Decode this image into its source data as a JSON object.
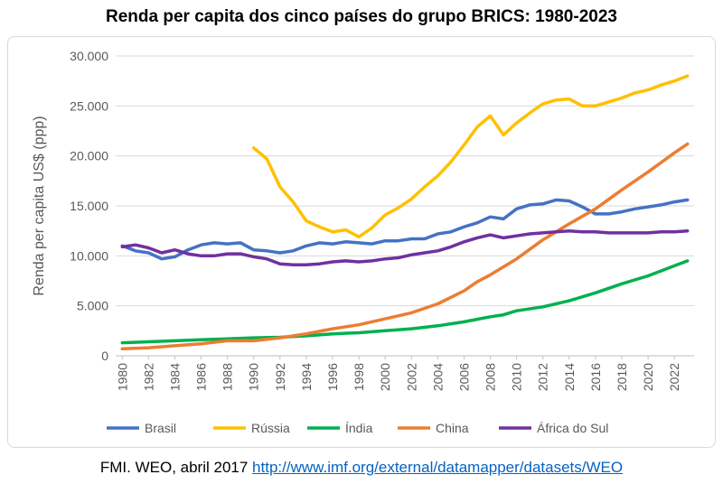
{
  "chart_data": {
    "type": "line",
    "title": "Renda per capita dos cinco países do grupo BRICS: 1980-2023",
    "ylabel": "Renda per capita US$ (ppp)",
    "xlabel": "",
    "xlim": [
      1980,
      2023
    ],
    "ylim": [
      0,
      30000
    ],
    "y_ticks": [
      0,
      5000,
      10000,
      15000,
      20000,
      25000,
      30000
    ],
    "y_tick_labels": [
      "0",
      "5.000",
      "10.000",
      "15.000",
      "20.000",
      "25.000",
      "30.000"
    ],
    "x_tick_labels": [
      "1980",
      "1982",
      "1984",
      "1986",
      "1988",
      "1990",
      "1992",
      "1994",
      "1996",
      "1998",
      "2000",
      "2002",
      "2004",
      "2006",
      "2008",
      "2010",
      "2012",
      "2014",
      "2016",
      "2018",
      "2020",
      "2022"
    ],
    "grid": "horizontal",
    "legend_position": "bottom",
    "series": [
      {
        "name": "Brasil",
        "color": "#4472c4",
        "x": [
          1980,
          1981,
          1982,
          1983,
          1984,
          1985,
          1986,
          1987,
          1988,
          1989,
          1990,
          1991,
          1992,
          1993,
          1994,
          1995,
          1996,
          1997,
          1998,
          1999,
          2000,
          2001,
          2002,
          2003,
          2004,
          2005,
          2006,
          2007,
          2008,
          2009,
          2010,
          2011,
          2012,
          2013,
          2014,
          2015,
          2016,
          2017,
          2018,
          2019,
          2020,
          2021,
          2022,
          2023
        ],
        "values": [
          11000,
          10500,
          10300,
          9700,
          9900,
          10600,
          11100,
          11300,
          11200,
          11300,
          10600,
          10500,
          10300,
          10500,
          11000,
          11300,
          11200,
          11400,
          11300,
          11200,
          11500,
          11500,
          11700,
          11700,
          12200,
          12400,
          12900,
          13300,
          13900,
          13700,
          14700,
          15100,
          15200,
          15600,
          15500,
          14900,
          14200,
          14200,
          14400,
          14700,
          14900,
          15100,
          15400,
          15600
        ]
      },
      {
        "name": "Rússia",
        "color": "#ffc000",
        "x": [
          1990,
          1991,
          1992,
          1993,
          1994,
          1995,
          1996,
          1997,
          1998,
          1999,
          2000,
          2001,
          2002,
          2003,
          2004,
          2005,
          2006,
          2007,
          2008,
          2009,
          2010,
          2011,
          2012,
          2013,
          2014,
          2015,
          2016,
          2017,
          2018,
          2019,
          2020,
          2021,
          2022,
          2023
        ],
        "values": [
          20800,
          19700,
          16900,
          15400,
          13500,
          12900,
          12400,
          12600,
          11900,
          12800,
          14100,
          14800,
          15700,
          16900,
          18000,
          19400,
          21100,
          22900,
          24000,
          22100,
          23300,
          24300,
          25200,
          25600,
          25700,
          25000,
          25000,
          25400,
          25800,
          26300,
          26600,
          27100,
          27500,
          28000
        ]
      },
      {
        "name": "Índia",
        "color": "#00b050",
        "x": [
          1980,
          1982,
          1984,
          1986,
          1988,
          1990,
          1992,
          1994,
          1996,
          1998,
          2000,
          2002,
          2004,
          2006,
          2008,
          2009,
          2010,
          2012,
          2014,
          2016,
          2018,
          2020,
          2022,
          2023
        ],
        "values": [
          1300,
          1400,
          1500,
          1600,
          1700,
          1800,
          1850,
          2000,
          2200,
          2300,
          2500,
          2700,
          3000,
          3400,
          3900,
          4100,
          4500,
          4900,
          5500,
          6300,
          7200,
          8000,
          9000,
          9500
        ]
      },
      {
        "name": "China",
        "color": "#ed7d31",
        "x": [
          1980,
          1982,
          1984,
          1986,
          1988,
          1990,
          1992,
          1994,
          1996,
          1998,
          2000,
          2002,
          2004,
          2006,
          2007,
          2008,
          2010,
          2012,
          2014,
          2016,
          2018,
          2020,
          2022,
          2023
        ],
        "values": [
          700,
          800,
          1000,
          1200,
          1500,
          1500,
          1800,
          2200,
          2700,
          3100,
          3700,
          4300,
          5200,
          6500,
          7400,
          8100,
          9700,
          11600,
          13200,
          14700,
          16600,
          18400,
          20300,
          21200
        ]
      },
      {
        "name": "África do Sul",
        "color": "#7030a0",
        "x": [
          1980,
          1981,
          1982,
          1983,
          1984,
          1985,
          1986,
          1987,
          1988,
          1989,
          1990,
          1991,
          1992,
          1993,
          1994,
          1995,
          1996,
          1997,
          1998,
          1999,
          2000,
          2001,
          2002,
          2003,
          2004,
          2005,
          2006,
          2007,
          2008,
          2009,
          2010,
          2011,
          2012,
          2013,
          2014,
          2015,
          2016,
          2017,
          2018,
          2019,
          2020,
          2021,
          2022,
          2023
        ],
        "values": [
          10900,
          11100,
          10800,
          10300,
          10600,
          10200,
          10000,
          10000,
          10200,
          10200,
          9900,
          9700,
          9200,
          9100,
          9100,
          9200,
          9400,
          9500,
          9400,
          9500,
          9700,
          9800,
          10100,
          10300,
          10500,
          10900,
          11400,
          11800,
          12100,
          11800,
          12000,
          12200,
          12300,
          12400,
          12500,
          12400,
          12400,
          12300,
          12300,
          12300,
          12300,
          12400,
          12400,
          12500
        ]
      }
    ]
  },
  "source": {
    "prefix": "FMI. WEO, abril 2017 ",
    "link": "http://www.imf.org/external/datamapper/datasets/WEO"
  }
}
